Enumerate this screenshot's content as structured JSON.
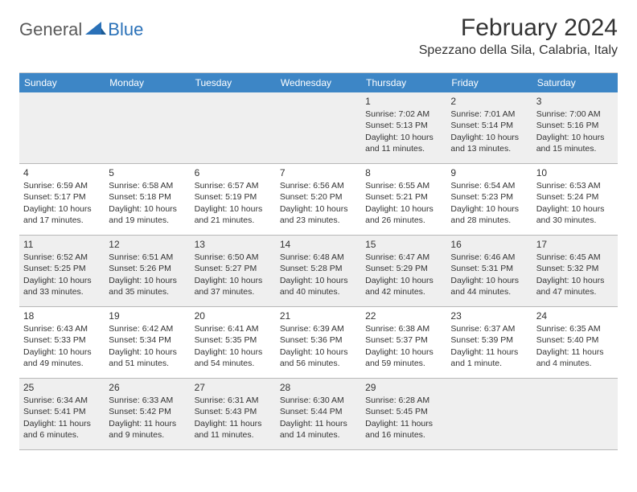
{
  "logo": {
    "text1": "General",
    "text2": "Blue"
  },
  "title": "February 2024",
  "location": "Spezzano della Sila, Calabria, Italy",
  "colors": {
    "header_bg": "#3d86c6",
    "header_text": "#ffffff",
    "body_text": "#333333",
    "shaded_bg": "#efefef",
    "grid_line": "#b8b8b8",
    "logo_gray": "#5a5a5a",
    "logo_blue": "#2a71b8"
  },
  "dayHeaders": [
    "Sunday",
    "Monday",
    "Tuesday",
    "Wednesday",
    "Thursday",
    "Friday",
    "Saturday"
  ],
  "weeks": [
    [
      {
        "num": "",
        "lines": []
      },
      {
        "num": "",
        "lines": []
      },
      {
        "num": "",
        "lines": []
      },
      {
        "num": "",
        "lines": []
      },
      {
        "num": "1",
        "lines": [
          "Sunrise: 7:02 AM",
          "Sunset: 5:13 PM",
          "Daylight: 10 hours and 11 minutes."
        ]
      },
      {
        "num": "2",
        "lines": [
          "Sunrise: 7:01 AM",
          "Sunset: 5:14 PM",
          "Daylight: 10 hours and 13 minutes."
        ]
      },
      {
        "num": "3",
        "lines": [
          "Sunrise: 7:00 AM",
          "Sunset: 5:16 PM",
          "Daylight: 10 hours and 15 minutes."
        ]
      }
    ],
    [
      {
        "num": "4",
        "lines": [
          "Sunrise: 6:59 AM",
          "Sunset: 5:17 PM",
          "Daylight: 10 hours and 17 minutes."
        ]
      },
      {
        "num": "5",
        "lines": [
          "Sunrise: 6:58 AM",
          "Sunset: 5:18 PM",
          "Daylight: 10 hours and 19 minutes."
        ]
      },
      {
        "num": "6",
        "lines": [
          "Sunrise: 6:57 AM",
          "Sunset: 5:19 PM",
          "Daylight: 10 hours and 21 minutes."
        ]
      },
      {
        "num": "7",
        "lines": [
          "Sunrise: 6:56 AM",
          "Sunset: 5:20 PM",
          "Daylight: 10 hours and 23 minutes."
        ]
      },
      {
        "num": "8",
        "lines": [
          "Sunrise: 6:55 AM",
          "Sunset: 5:21 PM",
          "Daylight: 10 hours and 26 minutes."
        ]
      },
      {
        "num": "9",
        "lines": [
          "Sunrise: 6:54 AM",
          "Sunset: 5:23 PM",
          "Daylight: 10 hours and 28 minutes."
        ]
      },
      {
        "num": "10",
        "lines": [
          "Sunrise: 6:53 AM",
          "Sunset: 5:24 PM",
          "Daylight: 10 hours and 30 minutes."
        ]
      }
    ],
    [
      {
        "num": "11",
        "lines": [
          "Sunrise: 6:52 AM",
          "Sunset: 5:25 PM",
          "Daylight: 10 hours and 33 minutes."
        ]
      },
      {
        "num": "12",
        "lines": [
          "Sunrise: 6:51 AM",
          "Sunset: 5:26 PM",
          "Daylight: 10 hours and 35 minutes."
        ]
      },
      {
        "num": "13",
        "lines": [
          "Sunrise: 6:50 AM",
          "Sunset: 5:27 PM",
          "Daylight: 10 hours and 37 minutes."
        ]
      },
      {
        "num": "14",
        "lines": [
          "Sunrise: 6:48 AM",
          "Sunset: 5:28 PM",
          "Daylight: 10 hours and 40 minutes."
        ]
      },
      {
        "num": "15",
        "lines": [
          "Sunrise: 6:47 AM",
          "Sunset: 5:29 PM",
          "Daylight: 10 hours and 42 minutes."
        ]
      },
      {
        "num": "16",
        "lines": [
          "Sunrise: 6:46 AM",
          "Sunset: 5:31 PM",
          "Daylight: 10 hours and 44 minutes."
        ]
      },
      {
        "num": "17",
        "lines": [
          "Sunrise: 6:45 AM",
          "Sunset: 5:32 PM",
          "Daylight: 10 hours and 47 minutes."
        ]
      }
    ],
    [
      {
        "num": "18",
        "lines": [
          "Sunrise: 6:43 AM",
          "Sunset: 5:33 PM",
          "Daylight: 10 hours and 49 minutes."
        ]
      },
      {
        "num": "19",
        "lines": [
          "Sunrise: 6:42 AM",
          "Sunset: 5:34 PM",
          "Daylight: 10 hours and 51 minutes."
        ]
      },
      {
        "num": "20",
        "lines": [
          "Sunrise: 6:41 AM",
          "Sunset: 5:35 PM",
          "Daylight: 10 hours and 54 minutes."
        ]
      },
      {
        "num": "21",
        "lines": [
          "Sunrise: 6:39 AM",
          "Sunset: 5:36 PM",
          "Daylight: 10 hours and 56 minutes."
        ]
      },
      {
        "num": "22",
        "lines": [
          "Sunrise: 6:38 AM",
          "Sunset: 5:37 PM",
          "Daylight: 10 hours and 59 minutes."
        ]
      },
      {
        "num": "23",
        "lines": [
          "Sunrise: 6:37 AM",
          "Sunset: 5:39 PM",
          "Daylight: 11 hours and 1 minute."
        ]
      },
      {
        "num": "24",
        "lines": [
          "Sunrise: 6:35 AM",
          "Sunset: 5:40 PM",
          "Daylight: 11 hours and 4 minutes."
        ]
      }
    ],
    [
      {
        "num": "25",
        "lines": [
          "Sunrise: 6:34 AM",
          "Sunset: 5:41 PM",
          "Daylight: 11 hours and 6 minutes."
        ]
      },
      {
        "num": "26",
        "lines": [
          "Sunrise: 6:33 AM",
          "Sunset: 5:42 PM",
          "Daylight: 11 hours and 9 minutes."
        ]
      },
      {
        "num": "27",
        "lines": [
          "Sunrise: 6:31 AM",
          "Sunset: 5:43 PM",
          "Daylight: 11 hours and 11 minutes."
        ]
      },
      {
        "num": "28",
        "lines": [
          "Sunrise: 6:30 AM",
          "Sunset: 5:44 PM",
          "Daylight: 11 hours and 14 minutes."
        ]
      },
      {
        "num": "29",
        "lines": [
          "Sunrise: 6:28 AM",
          "Sunset: 5:45 PM",
          "Daylight: 11 hours and 16 minutes."
        ]
      },
      {
        "num": "",
        "lines": []
      },
      {
        "num": "",
        "lines": []
      }
    ]
  ]
}
